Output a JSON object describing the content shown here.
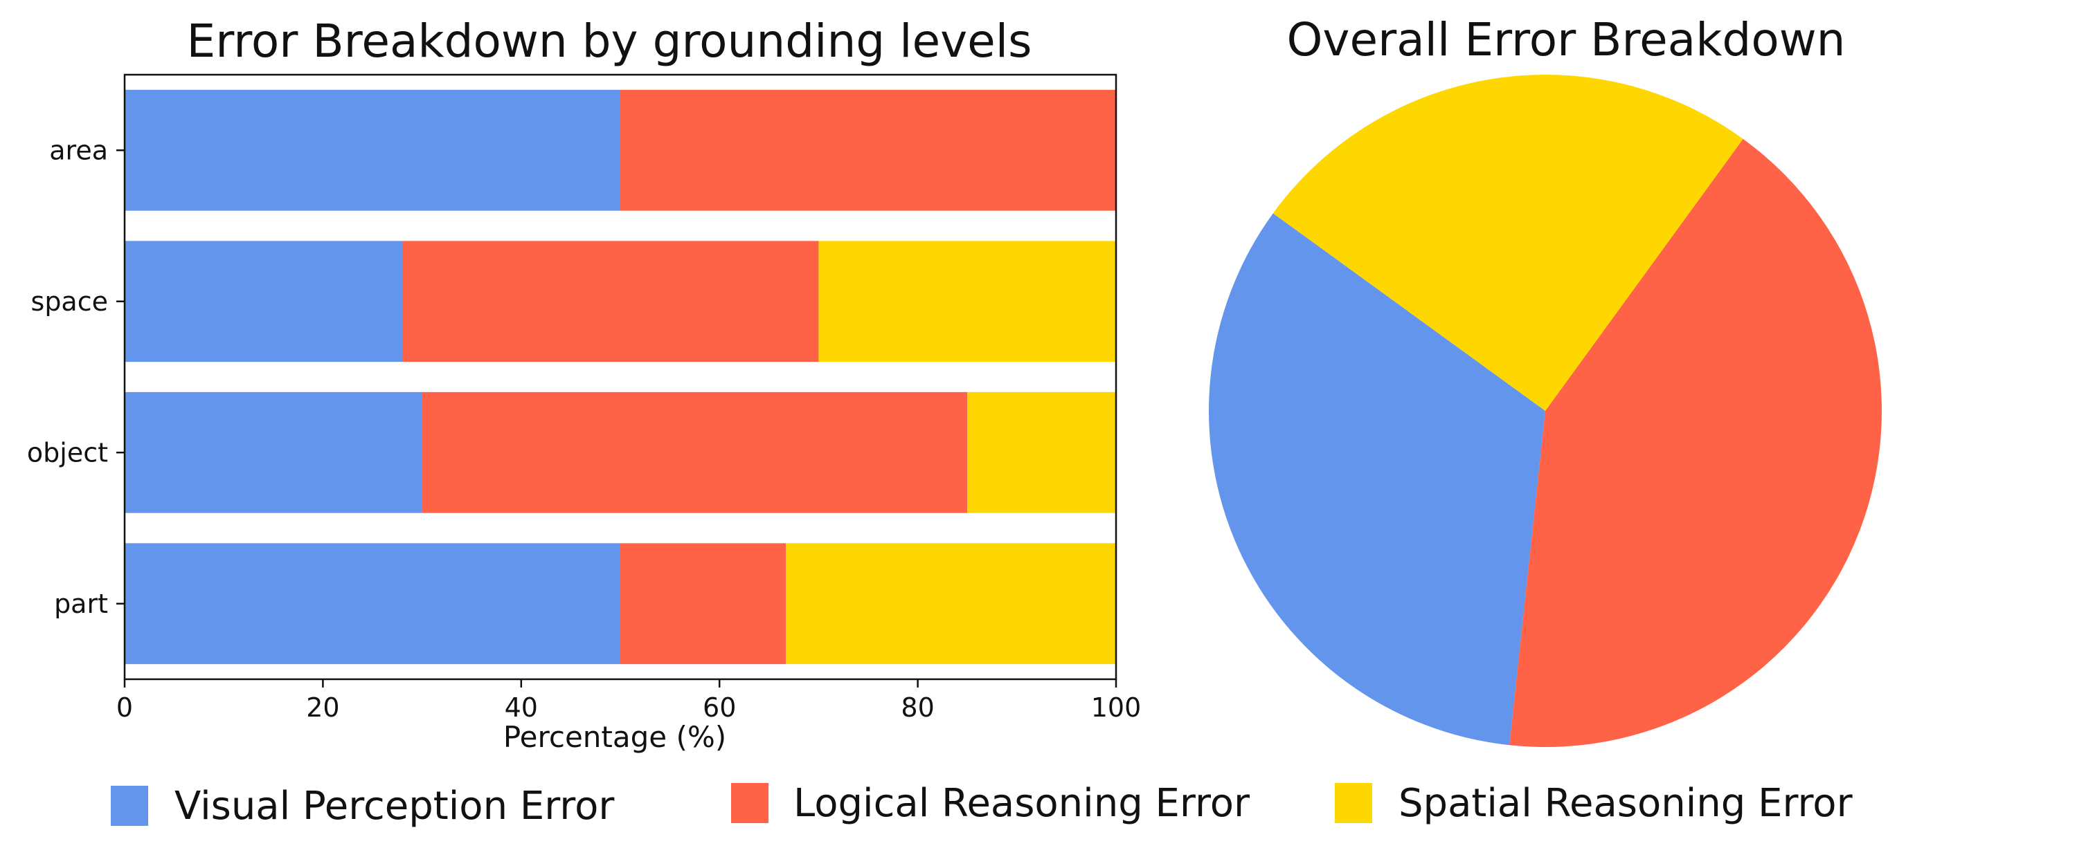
{
  "colors": {
    "visual": "#6495ED",
    "logical": "#FF6347",
    "spatial": "#FFD700"
  },
  "chart_data": [
    {
      "type": "bar",
      "orientation": "horizontal",
      "stacked": true,
      "title": "Error Breakdown by grounding levels",
      "categories": [
        "area",
        "space",
        "object",
        "part"
      ],
      "series": [
        {
          "name": "Visual Perception Error",
          "values": [
            50,
            28,
            30,
            50
          ]
        },
        {
          "name": "Logical Reasoning Error",
          "values": [
            50,
            42,
            55,
            16.7
          ]
        },
        {
          "name": "Spatial Reasoning Error",
          "values": [
            0,
            30,
            15,
            33.3
          ]
        }
      ],
      "xlabel": "Percentage (%)",
      "ylabel": "",
      "xlim": [
        0,
        100
      ],
      "xticks": [
        "0",
        "20",
        "40",
        "60",
        "80",
        "100"
      ],
      "grid": false
    },
    {
      "type": "pie",
      "title": "Overall Error Breakdown",
      "labels": [
        "Visual Perception Error",
        "Logical Reasoning Error",
        "Spatial Reasoning Error"
      ],
      "values": [
        33.3,
        41.7,
        25.0
      ]
    }
  ],
  "legend": {
    "placement": "bottom",
    "items": [
      "Visual Perception Error",
      "Logical Reasoning Error",
      "Spatial Reasoning Error"
    ]
  }
}
